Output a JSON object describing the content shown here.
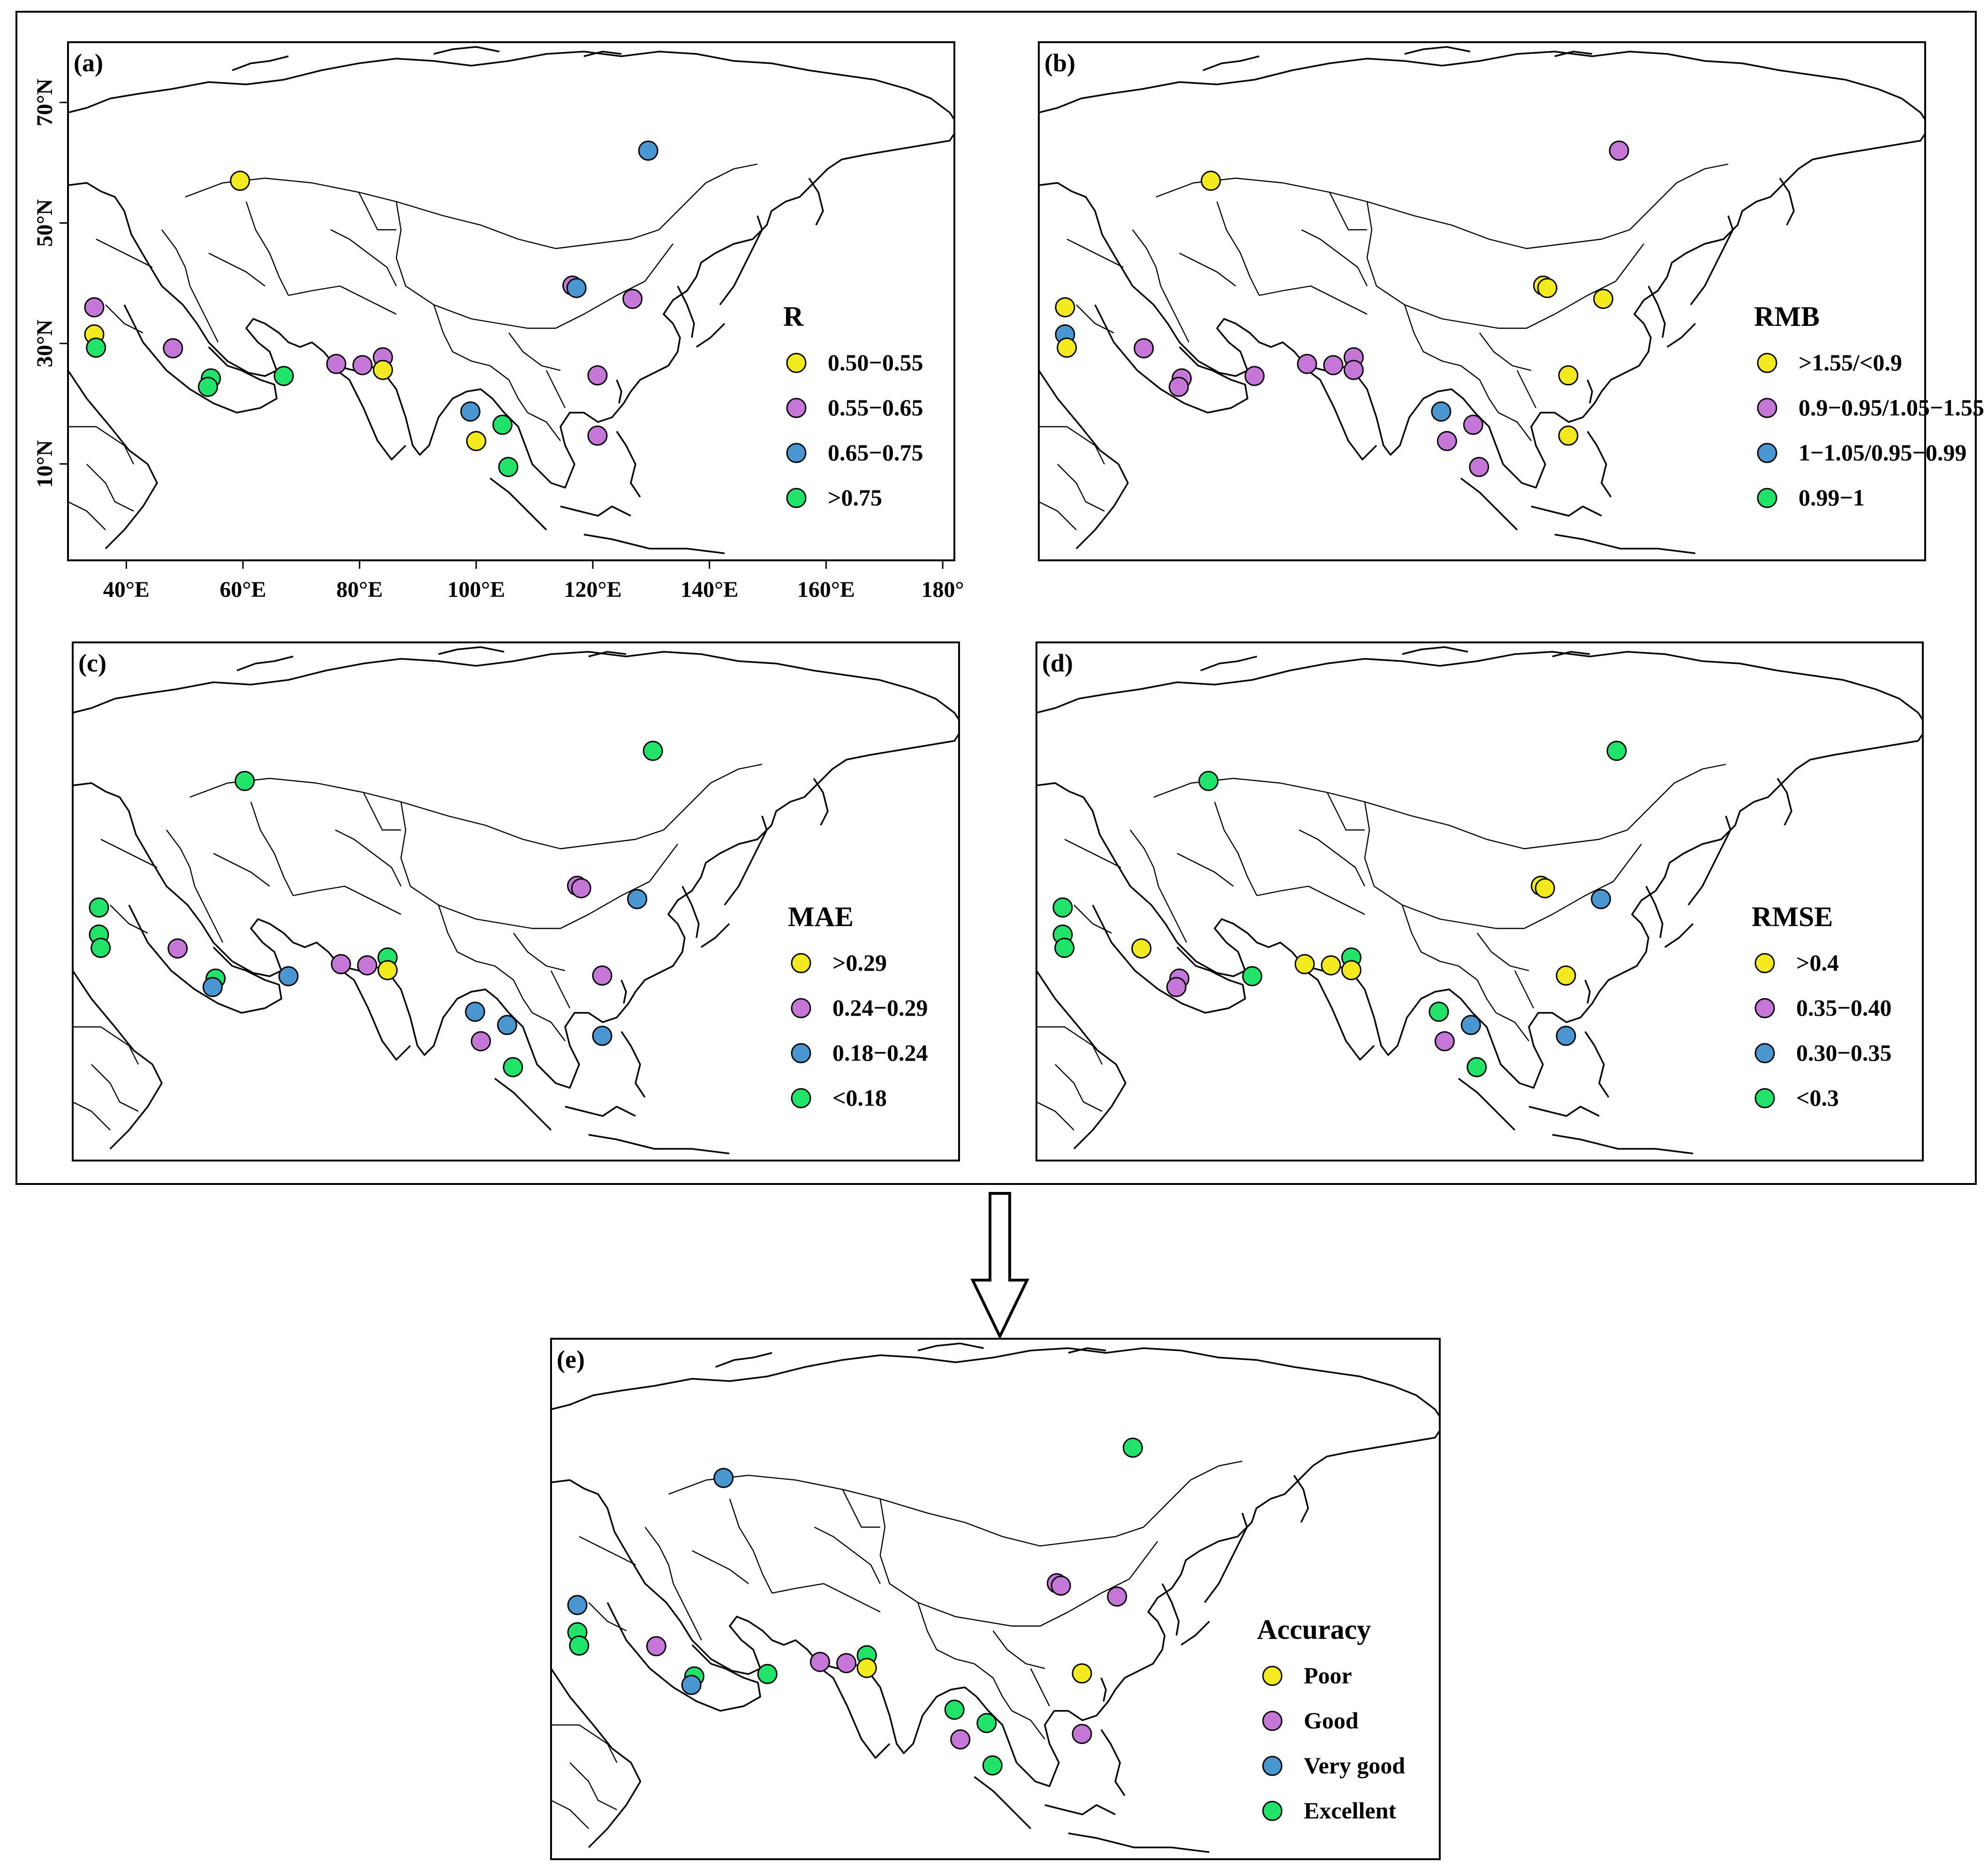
{
  "axes": {
    "x_ticks": [
      {
        "lon": 40,
        "label": "40°E"
      },
      {
        "lon": 60,
        "label": "60°E"
      },
      {
        "lon": 80,
        "label": "80°E"
      },
      {
        "lon": 100,
        "label": "100°E"
      },
      {
        "lon": 120,
        "label": "120°E"
      },
      {
        "lon": 140,
        "label": "140°E"
      },
      {
        "lon": 160,
        "label": "160°E"
      },
      {
        "lon": 180,
        "label": "180°"
      }
    ],
    "y_ticks": [
      {
        "lat": 70,
        "label": "70°N"
      },
      {
        "lat": 50,
        "label": "50°N"
      },
      {
        "lat": 30,
        "label": "30°N"
      },
      {
        "lat": 10,
        "label": "10°N"
      }
    ]
  },
  "colors": {
    "yellow": "#F2EA1F",
    "purple": "#C477D6",
    "blue": "#4A96D1",
    "green": "#22E36A",
    "outline": "#000000"
  },
  "panels": [
    {
      "id": "a",
      "label": "(a)",
      "title": "R",
      "legend": [
        {
          "color": "yellow",
          "label": "0.50−0.55"
        },
        {
          "color": "purple",
          "label": "0.55−0.65"
        },
        {
          "color": "blue",
          "label": "0.65−0.75"
        },
        {
          "color": "green",
          "label": ">0.75"
        }
      ],
      "stations": [
        {
          "lon": 59.5,
          "lat": 57,
          "c": "yellow"
        },
        {
          "lon": 129.5,
          "lat": 62,
          "c": "blue"
        },
        {
          "lon": 34.5,
          "lat": 36,
          "c": "purple"
        },
        {
          "lon": 34.5,
          "lat": 31.5,
          "c": "yellow"
        },
        {
          "lon": 34.8,
          "lat": 29.3,
          "c": "green"
        },
        {
          "lon": 48,
          "lat": 29.2,
          "c": "purple"
        },
        {
          "lon": 54.5,
          "lat": 24.2,
          "c": "green"
        },
        {
          "lon": 54,
          "lat": 22.8,
          "c": "green"
        },
        {
          "lon": 67,
          "lat": 24.6,
          "c": "green"
        },
        {
          "lon": 76,
          "lat": 26.6,
          "c": "purple"
        },
        {
          "lon": 80.5,
          "lat": 26.4,
          "c": "purple"
        },
        {
          "lon": 84,
          "lat": 27.7,
          "c": "purple"
        },
        {
          "lon": 84,
          "lat": 25.6,
          "c": "yellow"
        },
        {
          "lon": 116.5,
          "lat": 39.6,
          "c": "purple"
        },
        {
          "lon": 117.2,
          "lat": 39.2,
          "c": "blue"
        },
        {
          "lon": 126.8,
          "lat": 37.4,
          "c": "purple"
        },
        {
          "lon": 120.8,
          "lat": 24.7,
          "c": "purple"
        },
        {
          "lon": 120.8,
          "lat": 14.7,
          "c": "purple"
        },
        {
          "lon": 99,
          "lat": 18.7,
          "c": "blue"
        },
        {
          "lon": 104.5,
          "lat": 16.5,
          "c": "green"
        },
        {
          "lon": 100,
          "lat": 13.8,
          "c": "yellow"
        },
        {
          "lon": 105.5,
          "lat": 9.5,
          "c": "green"
        }
      ]
    },
    {
      "id": "b",
      "label": "(b)",
      "title": "RMB",
      "legend": [
        {
          "color": "yellow",
          "label": ">1.55/<0.9"
        },
        {
          "color": "purple",
          "label": "0.9−0.95/1.05−1.55"
        },
        {
          "color": "blue",
          "label": "1−1.05/0.95−0.99"
        },
        {
          "color": "green",
          "label": "0.99−1"
        }
      ],
      "stations": [
        {
          "lon": 59.5,
          "lat": 57,
          "c": "yellow"
        },
        {
          "lon": 129.5,
          "lat": 62,
          "c": "purple"
        },
        {
          "lon": 34.5,
          "lat": 36,
          "c": "yellow"
        },
        {
          "lon": 34.5,
          "lat": 31.5,
          "c": "blue"
        },
        {
          "lon": 34.8,
          "lat": 29.3,
          "c": "yellow"
        },
        {
          "lon": 48,
          "lat": 29.2,
          "c": "purple"
        },
        {
          "lon": 54.5,
          "lat": 24.2,
          "c": "purple"
        },
        {
          "lon": 54,
          "lat": 22.8,
          "c": "purple"
        },
        {
          "lon": 67,
          "lat": 24.6,
          "c": "purple"
        },
        {
          "lon": 76,
          "lat": 26.6,
          "c": "purple"
        },
        {
          "lon": 80.5,
          "lat": 26.4,
          "c": "purple"
        },
        {
          "lon": 84,
          "lat": 27.7,
          "c": "purple"
        },
        {
          "lon": 84,
          "lat": 25.6,
          "c": "purple"
        },
        {
          "lon": 116.5,
          "lat": 39.6,
          "c": "yellow"
        },
        {
          "lon": 117.2,
          "lat": 39.2,
          "c": "yellow"
        },
        {
          "lon": 126.8,
          "lat": 37.4,
          "c": "yellow"
        },
        {
          "lon": 120.8,
          "lat": 24.7,
          "c": "yellow"
        },
        {
          "lon": 120.8,
          "lat": 14.7,
          "c": "yellow"
        },
        {
          "lon": 99,
          "lat": 18.7,
          "c": "blue"
        },
        {
          "lon": 104.5,
          "lat": 16.5,
          "c": "purple"
        },
        {
          "lon": 100,
          "lat": 13.8,
          "c": "purple"
        },
        {
          "lon": 105.5,
          "lat": 9.5,
          "c": "purple"
        }
      ]
    },
    {
      "id": "c",
      "label": "(c)",
      "title": "MAE",
      "legend": [
        {
          "color": "yellow",
          "label": ">0.29"
        },
        {
          "color": "purple",
          "label": "0.24−0.29"
        },
        {
          "color": "blue",
          "label": "0.18−0.24"
        },
        {
          "color": "green",
          "label": "<0.18"
        }
      ],
      "stations": [
        {
          "lon": 59.5,
          "lat": 57,
          "c": "green"
        },
        {
          "lon": 129.5,
          "lat": 62,
          "c": "green"
        },
        {
          "lon": 34.5,
          "lat": 36,
          "c": "green"
        },
        {
          "lon": 34.5,
          "lat": 31.5,
          "c": "green"
        },
        {
          "lon": 34.8,
          "lat": 29.3,
          "c": "green"
        },
        {
          "lon": 48,
          "lat": 29.2,
          "c": "purple"
        },
        {
          "lon": 54.5,
          "lat": 24.2,
          "c": "green"
        },
        {
          "lon": 54,
          "lat": 22.8,
          "c": "blue"
        },
        {
          "lon": 67,
          "lat": 24.6,
          "c": "blue"
        },
        {
          "lon": 76,
          "lat": 26.6,
          "c": "purple"
        },
        {
          "lon": 80.5,
          "lat": 26.4,
          "c": "purple"
        },
        {
          "lon": 84,
          "lat": 27.7,
          "c": "green"
        },
        {
          "lon": 84,
          "lat": 25.6,
          "c": "yellow"
        },
        {
          "lon": 116.5,
          "lat": 39.6,
          "c": "purple"
        },
        {
          "lon": 117.2,
          "lat": 39.2,
          "c": "purple"
        },
        {
          "lon": 126.8,
          "lat": 37.4,
          "c": "blue"
        },
        {
          "lon": 120.8,
          "lat": 24.7,
          "c": "purple"
        },
        {
          "lon": 120.8,
          "lat": 14.7,
          "c": "blue"
        },
        {
          "lon": 99,
          "lat": 18.7,
          "c": "blue"
        },
        {
          "lon": 104.5,
          "lat": 16.5,
          "c": "blue"
        },
        {
          "lon": 100,
          "lat": 13.8,
          "c": "purple"
        },
        {
          "lon": 105.5,
          "lat": 9.5,
          "c": "green"
        }
      ]
    },
    {
      "id": "d",
      "label": "(d)",
      "title": "RMSE",
      "legend": [
        {
          "color": "yellow",
          "label": ">0.4"
        },
        {
          "color": "purple",
          "label": "0.35−0.40"
        },
        {
          "color": "blue",
          "label": "0.30−0.35"
        },
        {
          "color": "green",
          "label": "<0.3"
        }
      ],
      "stations": [
        {
          "lon": 59.5,
          "lat": 57,
          "c": "green"
        },
        {
          "lon": 129.5,
          "lat": 62,
          "c": "green"
        },
        {
          "lon": 34.5,
          "lat": 36,
          "c": "green"
        },
        {
          "lon": 34.5,
          "lat": 31.5,
          "c": "green"
        },
        {
          "lon": 34.8,
          "lat": 29.3,
          "c": "green"
        },
        {
          "lon": 48,
          "lat": 29.2,
          "c": "yellow"
        },
        {
          "lon": 54.5,
          "lat": 24.2,
          "c": "purple"
        },
        {
          "lon": 54,
          "lat": 22.8,
          "c": "purple"
        },
        {
          "lon": 67,
          "lat": 24.6,
          "c": "green"
        },
        {
          "lon": 76,
          "lat": 26.6,
          "c": "yellow"
        },
        {
          "lon": 80.5,
          "lat": 26.4,
          "c": "yellow"
        },
        {
          "lon": 84,
          "lat": 27.7,
          "c": "green"
        },
        {
          "lon": 84,
          "lat": 25.6,
          "c": "yellow"
        },
        {
          "lon": 116.5,
          "lat": 39.6,
          "c": "yellow"
        },
        {
          "lon": 117.2,
          "lat": 39.2,
          "c": "yellow"
        },
        {
          "lon": 126.8,
          "lat": 37.4,
          "c": "blue"
        },
        {
          "lon": 120.8,
          "lat": 24.7,
          "c": "yellow"
        },
        {
          "lon": 120.8,
          "lat": 14.7,
          "c": "blue"
        },
        {
          "lon": 99,
          "lat": 18.7,
          "c": "green"
        },
        {
          "lon": 104.5,
          "lat": 16.5,
          "c": "blue"
        },
        {
          "lon": 100,
          "lat": 13.8,
          "c": "purple"
        },
        {
          "lon": 105.5,
          "lat": 9.5,
          "c": "green"
        }
      ]
    },
    {
      "id": "e",
      "label": "(e)",
      "title": "Accuracy",
      "legend": [
        {
          "color": "yellow",
          "label": "Poor"
        },
        {
          "color": "purple",
          "label": "Good"
        },
        {
          "color": "blue",
          "label": "Very good"
        },
        {
          "color": "green",
          "label": "Excellent"
        }
      ],
      "stations": [
        {
          "lon": 59.5,
          "lat": 57,
          "c": "blue"
        },
        {
          "lon": 129.5,
          "lat": 62,
          "c": "green"
        },
        {
          "lon": 34.5,
          "lat": 36,
          "c": "blue"
        },
        {
          "lon": 34.5,
          "lat": 31.5,
          "c": "green"
        },
        {
          "lon": 34.8,
          "lat": 29.3,
          "c": "green"
        },
        {
          "lon": 48,
          "lat": 29.2,
          "c": "purple"
        },
        {
          "lon": 54.5,
          "lat": 24.2,
          "c": "green"
        },
        {
          "lon": 54,
          "lat": 22.8,
          "c": "blue"
        },
        {
          "lon": 67,
          "lat": 24.6,
          "c": "green"
        },
        {
          "lon": 76,
          "lat": 26.6,
          "c": "purple"
        },
        {
          "lon": 80.5,
          "lat": 26.4,
          "c": "purple"
        },
        {
          "lon": 84,
          "lat": 27.7,
          "c": "green"
        },
        {
          "lon": 84,
          "lat": 25.6,
          "c": "yellow"
        },
        {
          "lon": 116.5,
          "lat": 39.6,
          "c": "purple"
        },
        {
          "lon": 117.2,
          "lat": 39.2,
          "c": "purple"
        },
        {
          "lon": 126.8,
          "lat": 37.4,
          "c": "purple"
        },
        {
          "lon": 120.8,
          "lat": 24.7,
          "c": "yellow"
        },
        {
          "lon": 120.8,
          "lat": 14.7,
          "c": "purple"
        },
        {
          "lon": 99,
          "lat": 18.7,
          "c": "green"
        },
        {
          "lon": 104.5,
          "lat": 16.5,
          "c": "green"
        },
        {
          "lon": 100,
          "lat": 13.8,
          "c": "purple"
        },
        {
          "lon": 105.5,
          "lat": 9.5,
          "c": "green"
        }
      ]
    }
  ]
}
